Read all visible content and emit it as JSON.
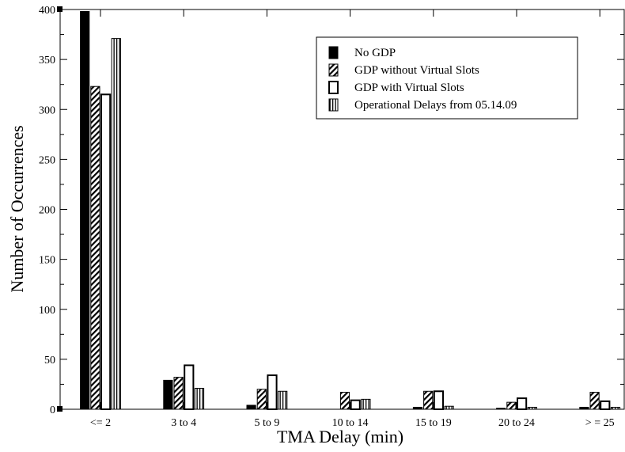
{
  "chart_data": {
    "type": "bar",
    "title": "",
    "xlabel": "TMA Delay (min)",
    "ylabel": "Number of Occurrences",
    "ylim": [
      0,
      400
    ],
    "yticks": [
      0,
      50,
      100,
      150,
      200,
      250,
      300,
      350,
      400
    ],
    "categories": [
      "<= 2",
      "3 to 4",
      "5 to 9",
      "10 to 14",
      "15 to 19",
      "20 to 24",
      "> = 25"
    ],
    "series": [
      {
        "name": "No GDP",
        "pattern": "solid",
        "values": [
          398,
          29,
          4,
          0,
          2,
          1,
          2
        ]
      },
      {
        "name": "GDP without Virtual Slots",
        "pattern": "diagonal",
        "values": [
          323,
          32,
          20,
          17,
          18,
          7,
          17
        ]
      },
      {
        "name": "GDP with Virtual Slots",
        "pattern": "hollow",
        "values": [
          315,
          44,
          34,
          9,
          18,
          11,
          8
        ]
      },
      {
        "name": "Operational Delays from 05.14.09",
        "pattern": "vertical",
        "values": [
          371,
          21,
          18,
          10,
          3,
          2,
          2
        ]
      }
    ],
    "legend_position": "top-right",
    "grid": false
  }
}
